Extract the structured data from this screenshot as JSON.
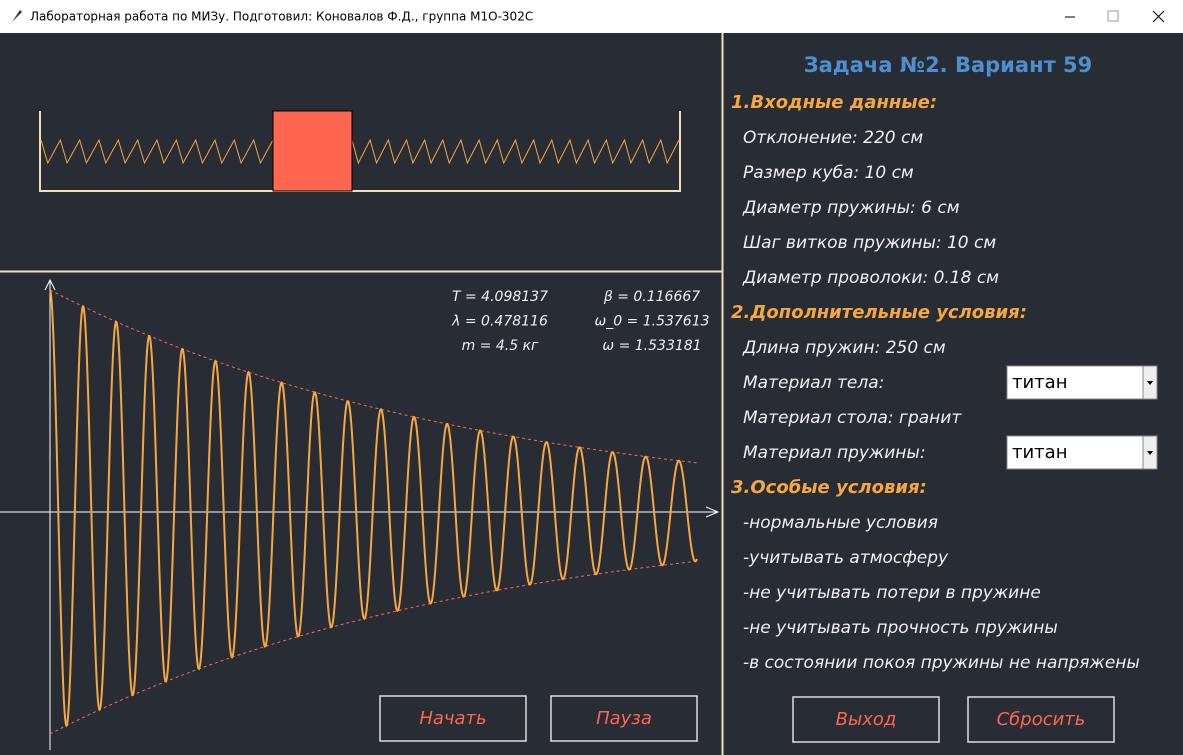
{
  "window": {
    "title": "Лабораторная работа по МИЗу. Подготовил: Коновалов Ф.Д., группа М1О-302С"
  },
  "simulation": {
    "parameters": [
      [
        "T = 4.098137",
        "β = 0.116667"
      ],
      [
        "λ = 0.478116",
        "ω_0 = 1.537613"
      ],
      [
        "m = 4.5 кг",
        "ω = 1.533181"
      ]
    ],
    "buttons": [
      "Начать",
      "Пауза"
    ]
  },
  "panel": {
    "title": "Задача №2. Вариант 59",
    "sections": [
      {
        "title": "1.Входные данные:",
        "items": [
          {
            "label": "Отклонение: 220 см"
          },
          {
            "label": "Размер куба: 10 см"
          },
          {
            "label": "Диаметр пружины: 6 см"
          },
          {
            "label": "Шаг витков пружины: 10 см"
          },
          {
            "label": "Диаметр проволоки: 0.18 см"
          }
        ]
      },
      {
        "title": "2.Дополнительные условия:",
        "items": [
          {
            "label": "Длина пружин: 250 см"
          },
          {
            "label": "Материал тела:",
            "select": "титан"
          },
          {
            "label": "Материал стола: гранит"
          },
          {
            "label": "Материал пружины:",
            "select": "титан"
          }
        ]
      },
      {
        "title": "3.Особые условия:",
        "items": [
          {
            "label": "-нормальные условия"
          },
          {
            "label": "-учитывать атмосферу"
          },
          {
            "label": "-не учитывать потери в пружине"
          },
          {
            "label": "-не учитывать прочность пружины"
          },
          {
            "label": "-в состоянии покоя пружины не напряжены"
          }
        ]
      }
    ],
    "buttons": [
      "Выход",
      "Сбросить"
    ]
  }
}
